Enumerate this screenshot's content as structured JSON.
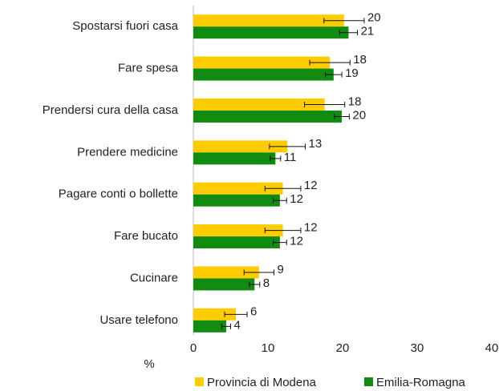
{
  "chart_data": {
    "type": "bar",
    "orientation": "horizontal",
    "categories": [
      "Spostarsi fuori casa",
      "Fare spesa",
      "Prendersi cura della casa",
      "Prendere medicine",
      "Pagare conti o bollette",
      "Fare bucato",
      "Cucinare",
      "Usare telefono"
    ],
    "series": [
      {
        "name": "Provincia di Modena",
        "color": "#ffcc00",
        "values": [
          20.2,
          18.3,
          17.6,
          12.6,
          12.0,
          12.0,
          8.8,
          5.7
        ],
        "errors": [
          2.7,
          2.7,
          2.7,
          2.4,
          2.4,
          2.4,
          2.0,
          1.5
        ],
        "value_labels": [
          "20",
          "18",
          "18",
          "13",
          "12",
          "12",
          "9",
          "6"
        ]
      },
      {
        "name": "Emilia-Romagna",
        "color": "#118c11",
        "values": [
          20.8,
          18.8,
          19.9,
          11.0,
          11.6,
          11.6,
          8.2,
          4.4
        ],
        "errors": [
          1.2,
          1.1,
          1.0,
          0.7,
          0.9,
          0.9,
          0.7,
          0.6
        ],
        "value_labels": [
          "21",
          "19",
          "20",
          "11",
          "12",
          "12",
          "8",
          "4"
        ]
      }
    ],
    "xlabel": "%",
    "xlim": [
      0,
      40
    ],
    "xticks": [
      0,
      10,
      20,
      30,
      40
    ],
    "grid": false,
    "legend": "bottom"
  }
}
